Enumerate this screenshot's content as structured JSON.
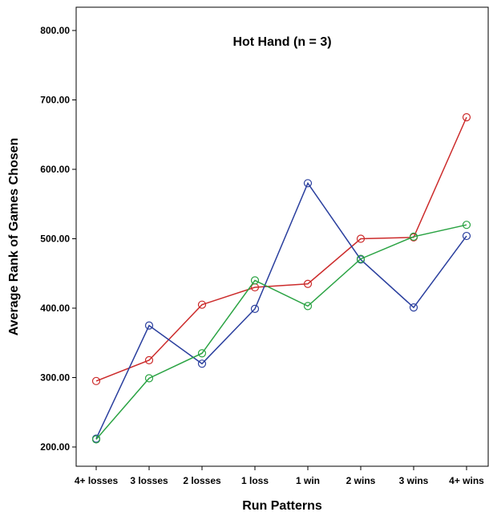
{
  "chart_data": {
    "type": "line",
    "title": "Hot Hand (n = 3)",
    "xlabel": "Run Patterns",
    "ylabel": "Average Rank of Games Chosen",
    "categories": [
      "4+ losses",
      "3 losses",
      "2 losses",
      "1 loss",
      "1 win",
      "2 wins",
      "3 wins",
      "4+ wins"
    ],
    "ylim": [
      180,
      820
    ],
    "yticks": [
      "200.00",
      "300.00",
      "400.00",
      "500.00",
      "600.00",
      "700.00",
      "800.00"
    ],
    "grid": false,
    "legend": "none",
    "markers": "open-circle",
    "series": [
      {
        "color": "#cc2b2b",
        "values": [
          295,
          325,
          405,
          430,
          435,
          500,
          502,
          675
        ]
      },
      {
        "color": "#2a3f9e",
        "values": [
          212,
          375,
          320,
          399,
          580,
          470,
          401,
          504
        ]
      },
      {
        "color": "#2aa343",
        "values": [
          211,
          299,
          335,
          440,
          403,
          471,
          503,
          520
        ]
      }
    ]
  }
}
